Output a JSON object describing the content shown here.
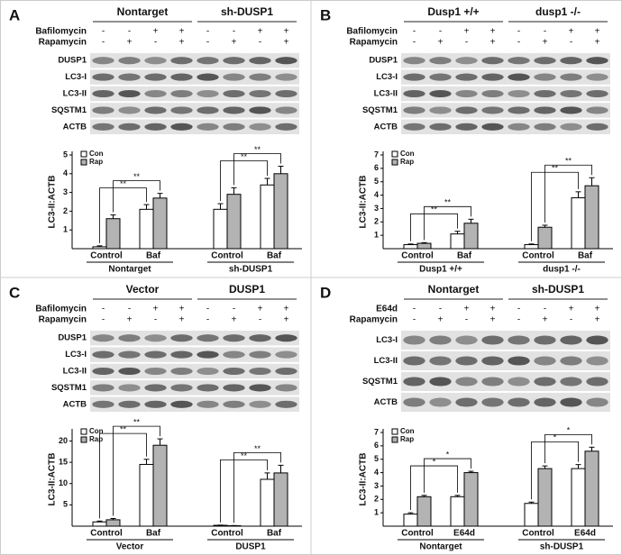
{
  "chart_data": [
    {
      "type": "bar",
      "panel": "A",
      "headers": [
        "Nontarget",
        "sh-DUSP1"
      ],
      "treatments": [
        {
          "name": "Bafilomycin",
          "signs": [
            "-",
            "-",
            "+",
            "+",
            "-",
            "-",
            "+",
            "+"
          ]
        },
        {
          "name": "Rapamycin",
          "signs": [
            "-",
            "+",
            "-",
            "+",
            "-",
            "+",
            "-",
            "+"
          ]
        }
      ],
      "blot_labels": [
        "DUSP1",
        "LC3-I",
        "LC3-II",
        "SQSTM1",
        "ACTB"
      ],
      "ylabel": "LC3-II:ACTB",
      "categories": [
        "Control",
        "Baf",
        "Control",
        "Baf"
      ],
      "groups": [
        "Nontarget",
        "sh-DUSP1"
      ],
      "series": [
        {
          "name": "Con",
          "color": "#ffffff",
          "values": [
            0.1,
            2.1,
            2.1,
            3.4
          ],
          "errors": [
            0.05,
            0.25,
            0.3,
            0.35
          ]
        },
        {
          "name": "Rap",
          "color": "#b3b3b3",
          "values": [
            1.6,
            2.7,
            2.9,
            4.0
          ],
          "errors": [
            0.2,
            0.25,
            0.35,
            0.4
          ]
        }
      ],
      "ylim": [
        0,
        5
      ],
      "yticks": [
        1,
        2,
        3,
        4,
        5
      ],
      "annotations": [
        "**",
        "**",
        "**",
        "**"
      ]
    },
    {
      "type": "bar",
      "panel": "B",
      "headers": [
        "Dusp1 +/+",
        "dusp1 -/-"
      ],
      "treatments": [
        {
          "name": "Bafilomycin",
          "signs": [
            "-",
            "-",
            "+",
            "+",
            "-",
            "-",
            "+",
            "+"
          ]
        },
        {
          "name": "Rapamycin",
          "signs": [
            "-",
            "+",
            "-",
            "+",
            "-",
            "+",
            "-",
            "+"
          ]
        }
      ],
      "blot_labels": [
        "DUSP1",
        "LC3-I",
        "LC3-II",
        "SQSTM1",
        "ACTB"
      ],
      "ylabel": "LC3-II:ACTB",
      "categories": [
        "Control",
        "Baf",
        "Control",
        "Baf"
      ],
      "groups": [
        "Dusp1 +/+",
        "dusp1 -/-"
      ],
      "series": [
        {
          "name": "Con",
          "color": "#ffffff",
          "values": [
            0.3,
            1.1,
            0.3,
            3.8
          ],
          "errors": [
            0.05,
            0.2,
            0.05,
            0.45
          ]
        },
        {
          "name": "Rap",
          "color": "#b3b3b3",
          "values": [
            0.4,
            1.9,
            1.6,
            4.7
          ],
          "errors": [
            0.05,
            0.3,
            0.15,
            0.6
          ]
        }
      ],
      "ylim": [
        0,
        7
      ],
      "yticks": [
        1,
        2,
        3,
        4,
        5,
        6,
        7
      ],
      "annotations": [
        "**",
        "**",
        "**",
        "**"
      ]
    },
    {
      "type": "bar",
      "panel": "C",
      "headers": [
        "Vector",
        "DUSP1"
      ],
      "treatments": [
        {
          "name": "Bafilomycin",
          "signs": [
            "-",
            "-",
            "+",
            "+",
            "-",
            "-",
            "+",
            "+"
          ]
        },
        {
          "name": "Rapamycin",
          "signs": [
            "-",
            "+",
            "-",
            "+",
            "-",
            "+",
            "-",
            "+"
          ]
        }
      ],
      "blot_labels": [
        "DUSP1",
        "LC3-I",
        "LC3-II",
        "SQSTM1",
        "ACTB"
      ],
      "ylabel": "LC3-II:ACTB",
      "categories": [
        "Control",
        "Baf",
        "Control",
        "Baf"
      ],
      "groups": [
        "Vector",
        "DUSP1"
      ],
      "series": [
        {
          "name": "Con",
          "color": "#ffffff",
          "values": [
            1,
            14.5,
            0.2,
            11
          ],
          "errors": [
            0.2,
            1.2,
            0.05,
            1.5
          ]
        },
        {
          "name": "Rap",
          "color": "#b3b3b3",
          "values": [
            1.5,
            19,
            0.1,
            12.5
          ],
          "errors": [
            0.3,
            1.5,
            0.05,
            1.8
          ]
        }
      ],
      "ylim": [
        0,
        22
      ],
      "yticks": [
        5,
        10,
        15,
        20
      ],
      "annotations": [
        "**",
        "**",
        "**",
        "**"
      ]
    },
    {
      "type": "bar",
      "panel": "D",
      "headers": [
        "Nontarget",
        "sh-DUSP1"
      ],
      "treatments": [
        {
          "name": "E64d",
          "signs": [
            "-",
            "-",
            "+",
            "+",
            "-",
            "-",
            "+",
            "+"
          ]
        },
        {
          "name": "Rapamycin",
          "signs": [
            "-",
            "+",
            "-",
            "+",
            "-",
            "+",
            "-",
            "+"
          ]
        }
      ],
      "blot_labels": [
        "LC3-I",
        "LC3-II",
        "SQSTM1",
        "ACTB"
      ],
      "ylabel": "LC3-II:ACTB",
      "categories": [
        "Control",
        "E64d",
        "Control",
        "E64d"
      ],
      "groups": [
        "Nontarget",
        "sh-DUSP1"
      ],
      "series": [
        {
          "name": "Con",
          "color": "#ffffff",
          "values": [
            0.9,
            2.2,
            1.7,
            4.3
          ],
          "errors": [
            0.1,
            0.1,
            0.1,
            0.3
          ]
        },
        {
          "name": "Rap",
          "color": "#b3b3b3",
          "values": [
            2.2,
            4.0,
            4.3,
            5.6
          ],
          "errors": [
            0.1,
            0.1,
            0.2,
            0.3
          ]
        }
      ],
      "ylim": [
        0,
        7
      ],
      "yticks": [
        1,
        2,
        3,
        4,
        5,
        6,
        7
      ],
      "annotations": [
        "*",
        "*",
        "*",
        "*"
      ]
    }
  ]
}
